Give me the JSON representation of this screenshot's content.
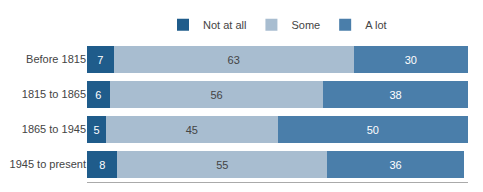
{
  "chart_data": {
    "type": "bar",
    "orientation": "horizontal",
    "stacked": true,
    "categories": [
      "Before 1815",
      "1815 to 1865",
      "1865 to 1945",
      "1945 to present"
    ],
    "series": [
      {
        "name": "Not at all",
        "color": "#1F5C8B",
        "values": [
          7,
          6,
          5,
          8
        ]
      },
      {
        "name": "Some",
        "color": "#A8BDD0",
        "values": [
          63,
          56,
          45,
          55
        ]
      },
      {
        "name": "A lot",
        "color": "#4A7EAA",
        "values": [
          30,
          38,
          50,
          36
        ]
      }
    ],
    "xlim": [
      0,
      100
    ],
    "data_labels": true,
    "tick_labels": "y",
    "grid": false,
    "legend": "top"
  }
}
